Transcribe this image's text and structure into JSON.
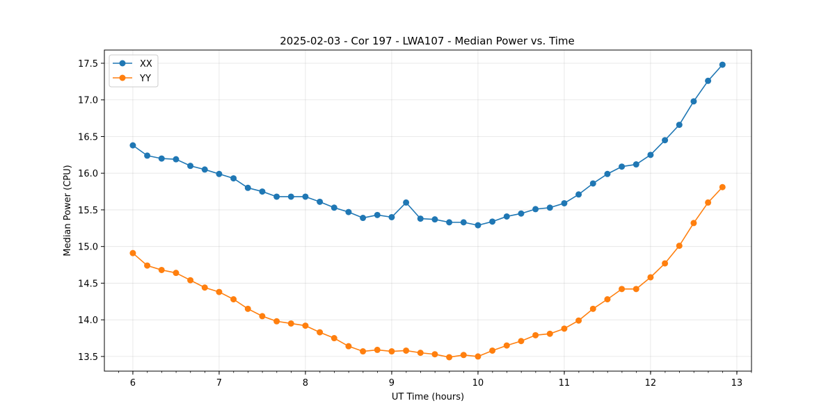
{
  "chart_data": {
    "type": "line",
    "title": "2025-02-03 - Cor 197 - LWA107 - Median Power vs. Time",
    "xlabel": "UT Time (hours)",
    "ylabel": "Median Power (CPU)",
    "xlim": [
      5.67,
      13.17
    ],
    "ylim": [
      13.3,
      17.68
    ],
    "xticks": [
      6,
      7,
      8,
      9,
      10,
      11,
      12,
      13
    ],
    "yticks": [
      13.5,
      14.0,
      14.5,
      15.0,
      15.5,
      16.0,
      16.5,
      17.0,
      17.5
    ],
    "x_minor_step": 0.1667,
    "grid": true,
    "legend_position": "upper-left",
    "x": [
      6.0,
      6.1667,
      6.3333,
      6.5,
      6.6667,
      6.8333,
      7.0,
      7.1667,
      7.3333,
      7.5,
      7.6667,
      7.8333,
      8.0,
      8.1667,
      8.3333,
      8.5,
      8.6667,
      8.8333,
      9.0,
      9.1667,
      9.3333,
      9.5,
      9.6667,
      9.8333,
      10.0,
      10.1667,
      10.3333,
      10.5,
      10.6667,
      10.8333,
      11.0,
      11.1667,
      11.3333,
      11.5,
      11.6667,
      11.8333,
      12.0,
      12.1667,
      12.3333,
      12.5,
      12.6667,
      12.8333
    ],
    "series": [
      {
        "name": "XX",
        "color": "#1f77b4",
        "values": [
          16.38,
          16.24,
          16.2,
          16.19,
          16.1,
          16.05,
          15.99,
          15.93,
          15.8,
          15.75,
          15.68,
          15.68,
          15.68,
          15.61,
          15.53,
          15.47,
          15.39,
          15.43,
          15.4,
          15.6,
          15.38,
          15.37,
          15.33,
          15.33,
          15.29,
          15.34,
          15.41,
          15.45,
          15.51,
          15.53,
          15.59,
          15.71,
          15.86,
          15.99,
          16.09,
          16.12,
          16.25,
          16.45,
          16.66,
          16.98,
          17.26,
          17.48
        ]
      },
      {
        "name": "YY",
        "color": "#ff7f0e",
        "values": [
          14.91,
          14.74,
          14.68,
          14.64,
          14.54,
          14.44,
          14.38,
          14.28,
          14.15,
          14.05,
          13.98,
          13.95,
          13.92,
          13.83,
          13.75,
          13.64,
          13.57,
          13.59,
          13.57,
          13.58,
          13.55,
          13.53,
          13.49,
          13.52,
          13.5,
          13.58,
          13.65,
          13.71,
          13.79,
          13.81,
          13.88,
          13.99,
          14.15,
          14.28,
          14.42,
          14.42,
          14.58,
          14.77,
          15.01,
          15.32,
          15.6,
          15.81
        ]
      }
    ]
  }
}
